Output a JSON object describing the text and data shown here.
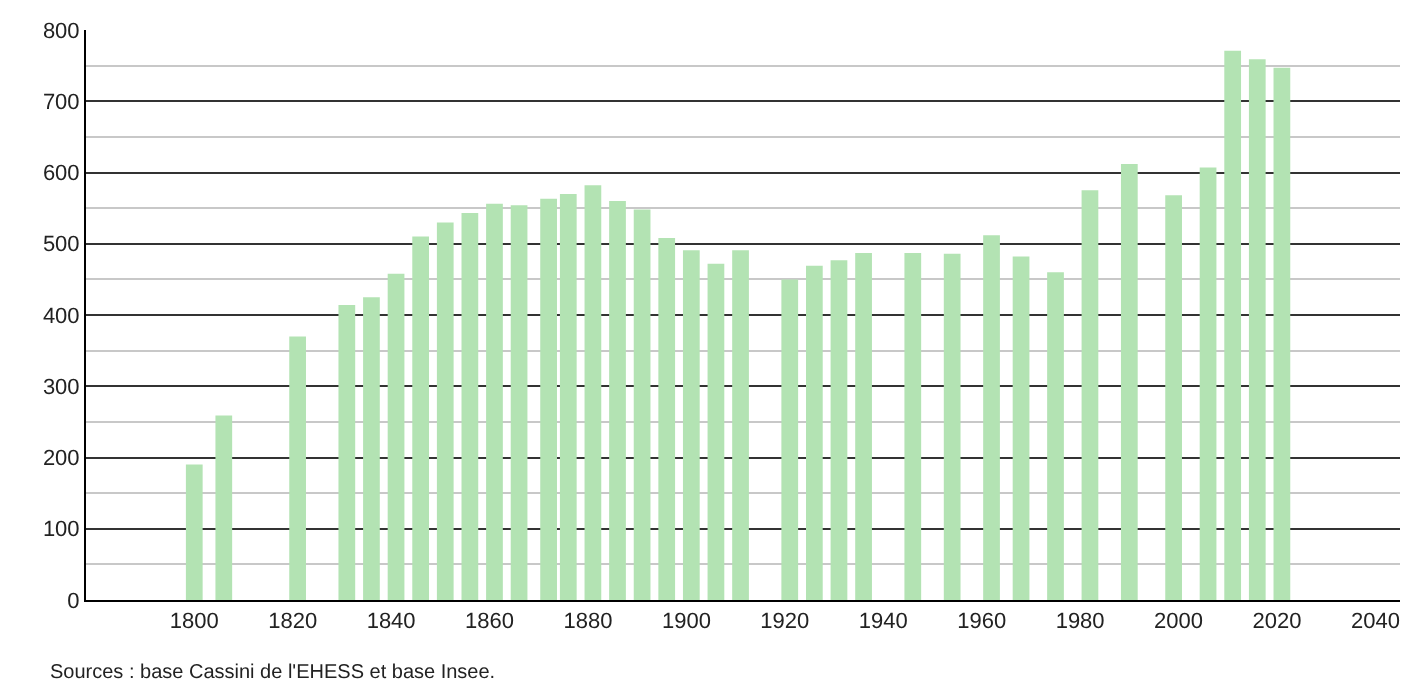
{
  "chart_data": {
    "type": "bar",
    "x": [
      1800,
      1806,
      1821,
      1831,
      1836,
      1841,
      1846,
      1851,
      1856,
      1861,
      1866,
      1872,
      1876,
      1881,
      1886,
      1891,
      1896,
      1901,
      1906,
      1911,
      1921,
      1926,
      1931,
      1936,
      1946,
      1954,
      1962,
      1968,
      1975,
      1982,
      1990,
      1999,
      2006,
      2011,
      2016,
      2021
    ],
    "values": [
      190,
      259,
      370,
      414,
      425,
      458,
      510,
      530,
      543,
      556,
      554,
      563,
      570,
      582,
      560,
      548,
      508,
      491,
      472,
      491,
      450,
      469,
      477,
      487,
      487,
      486,
      512,
      482,
      460,
      575,
      612,
      568,
      607,
      771,
      759,
      747
    ],
    "color": "#b3e3b3",
    "xlim": [
      1778,
      2045
    ],
    "xticks": [
      1800,
      1820,
      1840,
      1860,
      1880,
      1900,
      1920,
      1940,
      1960,
      1980,
      2000,
      2020,
      2040
    ],
    "ylim": [
      0,
      800
    ],
    "yticks": [
      0,
      100,
      200,
      300,
      400,
      500,
      600,
      700,
      800
    ],
    "grid": "y",
    "annotations": [
      "Sources : base Cassini de l'EHESS et base Insee."
    ]
  }
}
